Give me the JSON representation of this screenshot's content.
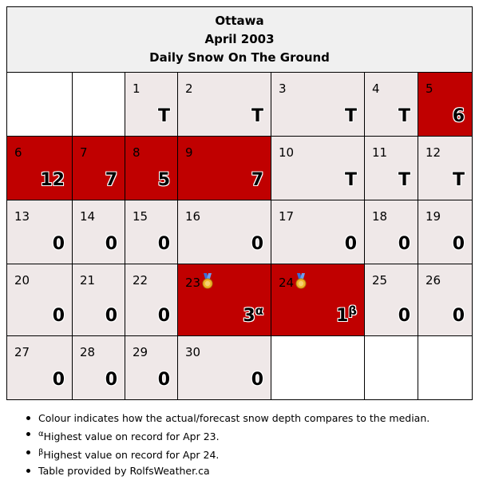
{
  "header": {
    "city": "Ottawa",
    "month": "April 2003",
    "subtitle": "Daily Snow On The Ground"
  },
  "colors": {
    "above_median": "#c00000",
    "near_median": "#efe8e8",
    "title_bg": "#f0f0f0"
  },
  "days": [
    {
      "day": "1",
      "value": "T"
    },
    {
      "day": "2",
      "value": "T"
    },
    {
      "day": "3",
      "value": "T"
    },
    {
      "day": "4",
      "value": "T"
    },
    {
      "day": "5",
      "value": "6"
    },
    {
      "day": "6",
      "value": "12"
    },
    {
      "day": "7",
      "value": "7"
    },
    {
      "day": "8",
      "value": "5"
    },
    {
      "day": "9",
      "value": "7"
    },
    {
      "day": "10",
      "value": "T"
    },
    {
      "day": "11",
      "value": "T"
    },
    {
      "day": "12",
      "value": "T"
    },
    {
      "day": "13",
      "value": "0"
    },
    {
      "day": "14",
      "value": "0"
    },
    {
      "day": "15",
      "value": "0"
    },
    {
      "day": "16",
      "value": "0"
    },
    {
      "day": "17",
      "value": "0"
    },
    {
      "day": "18",
      "value": "0"
    },
    {
      "day": "19",
      "value": "0"
    },
    {
      "day": "20",
      "value": "0"
    },
    {
      "day": "21",
      "value": "0"
    },
    {
      "day": "22",
      "value": "0"
    },
    {
      "day": "23",
      "value": "3",
      "mark": "α",
      "icon": "medal-icon"
    },
    {
      "day": "24",
      "value": "1",
      "mark": "β",
      "icon": "medal-icon"
    },
    {
      "day": "25",
      "value": "0"
    },
    {
      "day": "26",
      "value": "0"
    },
    {
      "day": "27",
      "value": "0"
    },
    {
      "day": "28",
      "value": "0"
    },
    {
      "day": "29",
      "value": "0"
    },
    {
      "day": "30",
      "value": "0"
    }
  ],
  "notes": [
    {
      "mark": "",
      "text": "Colour indicates how the actual/forecast snow depth compares to the median."
    },
    {
      "mark": "α",
      "text": "Highest value on record for Apr 23."
    },
    {
      "mark": "β",
      "text": "Highest value on record for Apr 24."
    },
    {
      "mark": "",
      "text": "Table provided by RolfsWeather.ca"
    }
  ]
}
